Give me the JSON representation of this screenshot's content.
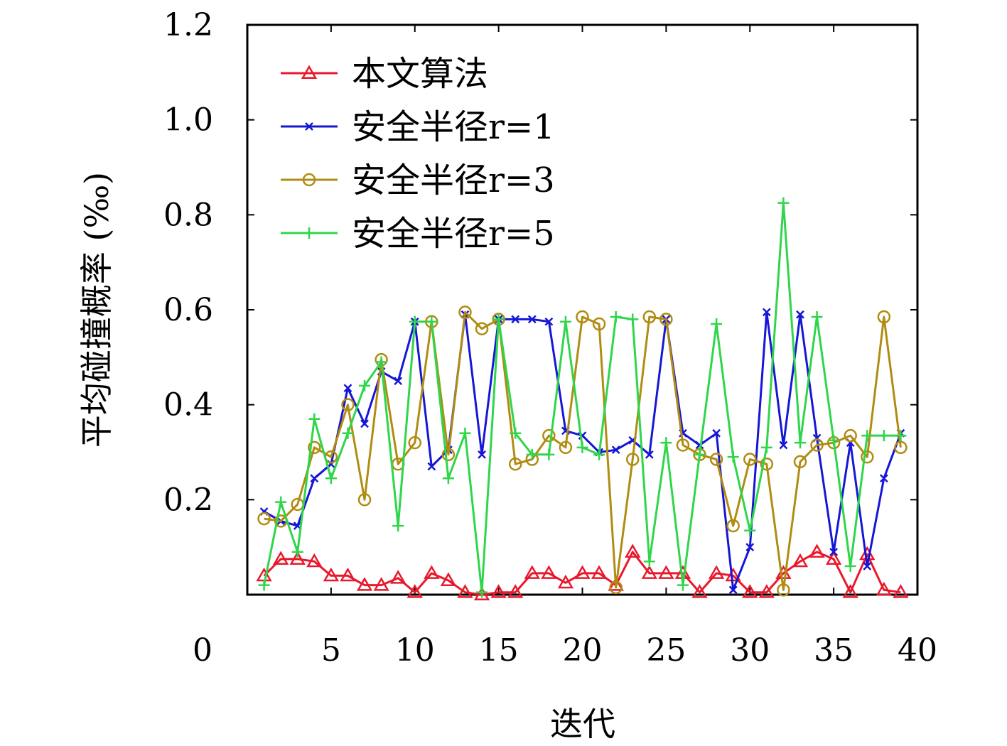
{
  "chart_data": {
    "type": "line",
    "xlabel": "迭代",
    "ylabel": "平均碰撞概率 (‰)",
    "xlim": [
      0,
      40
    ],
    "ylim": [
      0,
      1.2
    ],
    "x_ticks": [
      "0",
      "5",
      "10",
      "15",
      "20",
      "25",
      "30",
      "35",
      "40"
    ],
    "y_ticks": [
      "0.2",
      "0.4",
      "0.6",
      "0.8",
      "1.0",
      "1.2"
    ],
    "grid": false,
    "legend_position": "top-left",
    "x": [
      1,
      2,
      3,
      4,
      5,
      6,
      7,
      8,
      9,
      10,
      11,
      12,
      13,
      14,
      15,
      16,
      17,
      18,
      19,
      20,
      21,
      22,
      23,
      24,
      25,
      26,
      27,
      28,
      29,
      30,
      31,
      32,
      33,
      34,
      35,
      36,
      37,
      38,
      39
    ],
    "series": [
      {
        "name": "本文算法",
        "color": "#e8192c",
        "marker": "triangle",
        "values": [
          0.04,
          0.075,
          0.075,
          0.07,
          0.04,
          0.04,
          0.02,
          0.02,
          0.035,
          0.005,
          0.045,
          0.03,
          0.005,
          0.0,
          0.005,
          0.005,
          0.045,
          0.045,
          0.025,
          0.045,
          0.045,
          0.02,
          0.09,
          0.045,
          0.045,
          0.045,
          0.005,
          0.045,
          0.04,
          0.005,
          0.005,
          0.045,
          0.07,
          0.09,
          0.075,
          0.005,
          0.085,
          0.01,
          0.005
        ]
      },
      {
        "name": "安全半径r=1",
        "color": "#1616d6",
        "marker": "x",
        "values": [
          0.175,
          0.155,
          0.145,
          0.245,
          0.275,
          0.435,
          0.36,
          0.47,
          0.45,
          0.575,
          0.27,
          0.305,
          0.59,
          0.295,
          0.58,
          0.58,
          0.58,
          0.575,
          0.345,
          0.335,
          0.3,
          0.305,
          0.325,
          0.295,
          0.58,
          0.34,
          0.315,
          0.34,
          0.01,
          0.1,
          0.595,
          0.315,
          0.59,
          0.33,
          0.09,
          0.32,
          0.06,
          0.245,
          0.34
        ]
      },
      {
        "name": "安全半径r=3",
        "color": "#b18c12",
        "marker": "circle",
        "values": [
          0.16,
          0.155,
          0.19,
          0.31,
          0.29,
          0.4,
          0.2,
          0.495,
          0.275,
          0.32,
          0.575,
          0.295,
          0.595,
          0.56,
          0.58,
          0.275,
          0.285,
          0.335,
          0.31,
          0.585,
          0.57,
          0.015,
          0.285,
          0.585,
          0.58,
          0.315,
          0.295,
          0.285,
          0.145,
          0.285,
          0.275,
          0.01,
          0.28,
          0.315,
          0.32,
          0.335,
          0.29,
          0.585,
          0.31
        ]
      },
      {
        "name": "安全半径r=5",
        "color": "#2fd64a",
        "marker": "plus",
        "values": [
          0.02,
          0.195,
          0.09,
          0.37,
          0.245,
          0.34,
          0.44,
          0.49,
          0.145,
          0.575,
          0.575,
          0.245,
          0.34,
          0.005,
          0.58,
          0.34,
          0.295,
          0.295,
          0.575,
          0.31,
          0.295,
          0.585,
          0.58,
          0.07,
          0.32,
          0.02,
          0.295,
          0.57,
          0.29,
          0.135,
          0.31,
          0.825,
          0.32,
          0.585,
          0.325,
          0.06,
          0.335,
          0.335,
          0.335
        ]
      }
    ]
  }
}
